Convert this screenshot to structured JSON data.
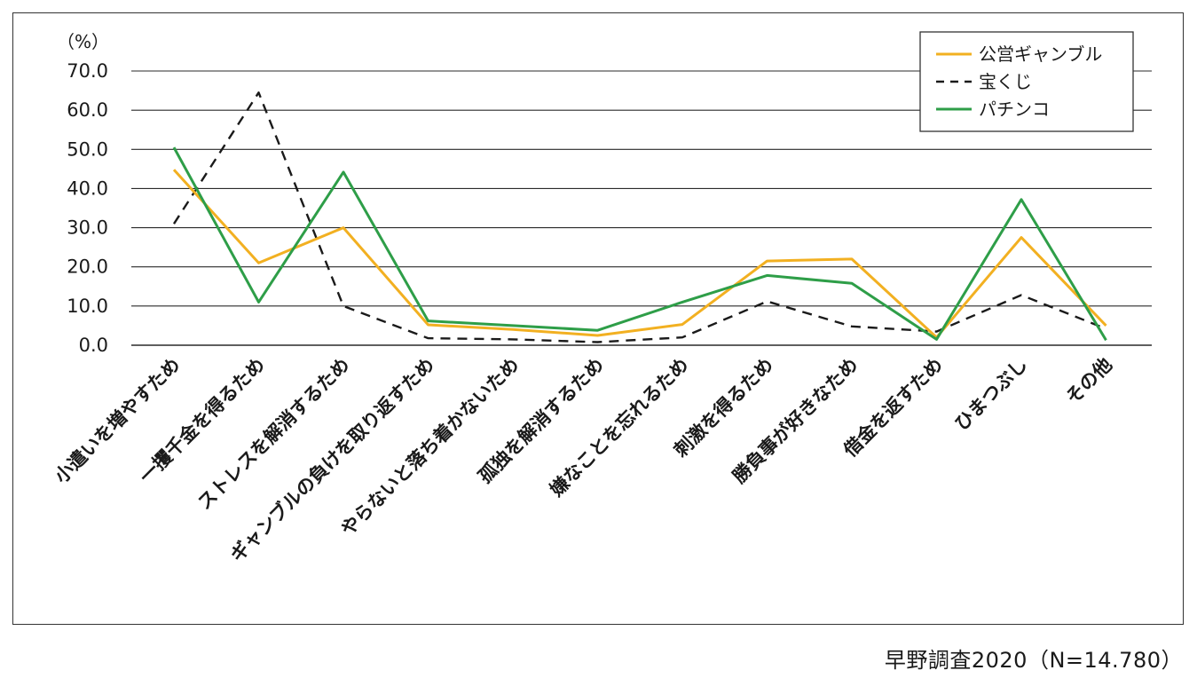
{
  "chart_data": {
    "type": "line",
    "unit_label": "（%）",
    "categories": [
      "小遣いを増やすため",
      "一攫千金を得るため",
      "ストレスを解消するため",
      "ギャンブルの負けを取り返すため",
      "やらないと落ち着かないため",
      "孤独を解消するため",
      "嫌なことを忘れるため",
      "刺激を得るため",
      "勝負事が好きなため",
      "借金を返すため",
      "ひまつぶし",
      "その他"
    ],
    "y_ticks": [
      "0.0",
      "10.0",
      "20.0",
      "30.0",
      "40.0",
      "50.0",
      "60.0",
      "70.0"
    ],
    "ylim": [
      0,
      70
    ],
    "grid": true,
    "legend_position": "top-right",
    "series": [
      {
        "name": "公営ギャンブル",
        "color": "#F2B021",
        "dash": "solid",
        "values": [
          44.8,
          21.0,
          30.0,
          5.2,
          4.0,
          2.5,
          5.3,
          21.5,
          22.0,
          2.0,
          27.5,
          5.0
        ]
      },
      {
        "name": "宝くじ",
        "color": "#1a1a1a",
        "dash": "dashed",
        "values": [
          31.0,
          64.5,
          10.0,
          1.8,
          1.5,
          0.8,
          2.0,
          11.2,
          4.8,
          3.5,
          12.8,
          4.2
        ]
      },
      {
        "name": "パチンコ",
        "color": "#2E9E48",
        "dash": "solid",
        "values": [
          50.5,
          11.0,
          44.2,
          6.2,
          5.0,
          3.8,
          11.0,
          17.8,
          15.8,
          1.5,
          37.2,
          1.3
        ]
      }
    ]
  },
  "source_note": "早野調査2020（N=14.780）"
}
